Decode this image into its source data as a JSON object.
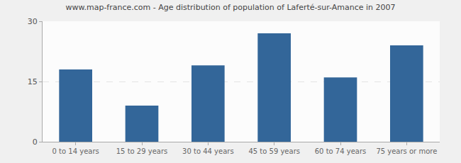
{
  "chart_data": {
    "type": "bar",
    "title": "www.map-france.com - Age distribution of population of Laferté-sur-Amance in 2007",
    "categories": [
      "0 to 14 years",
      "15 to 29 years",
      "30 to 44 years",
      "45 to 59 years",
      "60 to 74 years",
      "75 years or more"
    ],
    "values": [
      18,
      9,
      19,
      27,
      16,
      24
    ],
    "color": "#336699",
    "ylim": [
      0,
      30
    ],
    "yticks": [
      0,
      15,
      30
    ],
    "grid": true
  }
}
